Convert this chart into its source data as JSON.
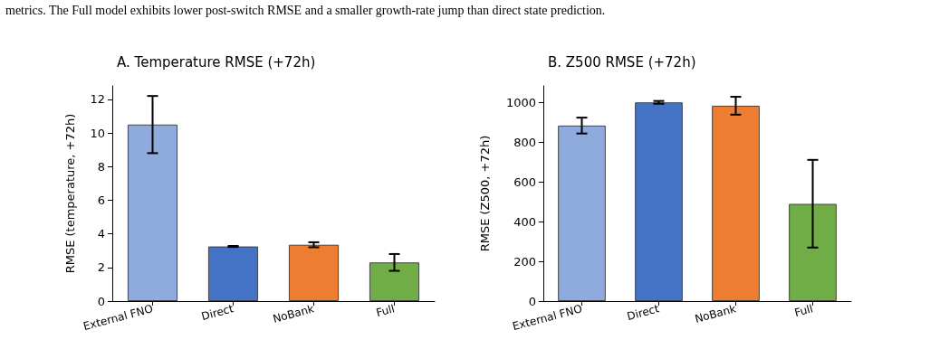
{
  "chart_data": [
    {
      "type": "bar",
      "title": "A. Temperature RMSE (+72h)",
      "ylabel": "RMSE (temperature, +72h)",
      "categories": [
        "External FNO",
        "Direct",
        "NoBank",
        "Full"
      ],
      "values": [
        10.5,
        3.25,
        3.35,
        2.3
      ],
      "colors": [
        "#8faadc",
        "#4472c4",
        "#ed7d31",
        "#70ad47"
      ],
      "errors": [
        [
          8.8,
          12.2
        ],
        [
          3.22,
          3.28
        ],
        [
          3.2,
          3.5
        ],
        [
          1.8,
          2.8
        ]
      ],
      "ylim": [
        0,
        12.8
      ],
      "yticks": [
        0,
        2,
        4,
        6,
        8,
        10,
        12
      ],
      "grid": false,
      "annotations": [
        "metrics. The Full model exhibits lower post-switch RMSE and a smaller growth-rate jump than direct state prediction."
      ]
    },
    {
      "type": "bar",
      "title": "B. Z500 RMSE (+72h)",
      "ylabel": "RMSE (Z500, +72h)",
      "categories": [
        "External FNO",
        "Direct",
        "NoBank",
        "Full"
      ],
      "values": [
        885,
        1002,
        985,
        490
      ],
      "colors": [
        "#8faadc",
        "#4472c4",
        "#ed7d31",
        "#70ad47"
      ],
      "errors": [
        [
          845,
          925
        ],
        [
          995,
          1009
        ],
        [
          940,
          1030
        ],
        [
          270,
          712
        ]
      ],
      "ylim": [
        0,
        1085
      ],
      "yticks": [
        0,
        200,
        400,
        600,
        800,
        1000
      ],
      "grid": false
    }
  ]
}
